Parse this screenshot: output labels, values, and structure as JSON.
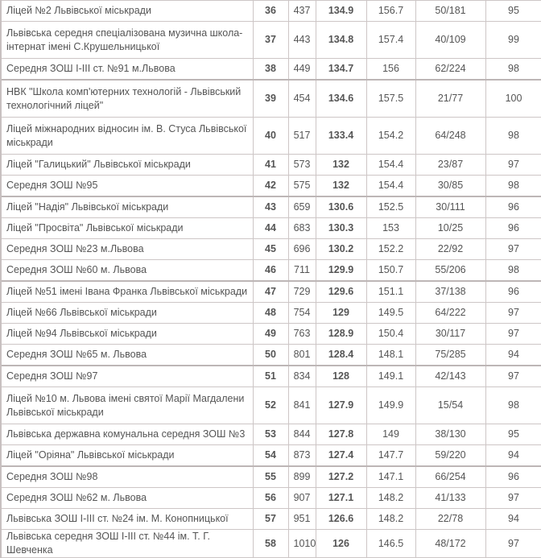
{
  "rows": [
    {
      "name": "Ліцей №2 Львівської міськради",
      "rank": "36",
      "num": "437",
      "score": "134.9",
      "avg": "156.7",
      "ratio": "50/181",
      "pct": "95"
    },
    {
      "name": "Львівська середня спеціалізована музична школа-інтернат імені С.Крушельницької",
      "rank": "37",
      "num": "443",
      "score": "134.8",
      "avg": "157.4",
      "ratio": "40/109",
      "pct": "99"
    },
    {
      "name": "Середня ЗОШ І-ІІІ ст. №91 м.Львова",
      "rank": "38",
      "num": "449",
      "score": "134.7",
      "avg": "156",
      "ratio": "62/224",
      "pct": "98"
    },
    {
      "name": "НВК \"Школа комп'ютерних технологій - Львівський технологічний ліцей\"",
      "rank": "39",
      "num": "454",
      "score": "134.6",
      "avg": "157.5",
      "ratio": "21/77",
      "pct": "100"
    },
    {
      "name": "Ліцей міжнародних відносин ім. В. Стуса Львівської міськради",
      "rank": "40",
      "num": "517",
      "score": "133.4",
      "avg": "154.2",
      "ratio": "64/248",
      "pct": "98"
    },
    {
      "name": "Ліцей \"Галицький\" Львівської міськради",
      "rank": "41",
      "num": "573",
      "score": "132",
      "avg": "154.4",
      "ratio": "23/87",
      "pct": "97"
    },
    {
      "name": "Середня ЗОШ №95",
      "rank": "42",
      "num": "575",
      "score": "132",
      "avg": "154.4",
      "ratio": "30/85",
      "pct": "98"
    },
    {
      "name": "Ліцей \"Надія\" Львівської міськради",
      "rank": "43",
      "num": "659",
      "score": "130.6",
      "avg": "152.5",
      "ratio": "30/111",
      "pct": "96"
    },
    {
      "name": "Ліцей \"Просвіта\" Львівської міськради",
      "rank": "44",
      "num": "683",
      "score": "130.3",
      "avg": "153",
      "ratio": "10/25",
      "pct": "96"
    },
    {
      "name": "Середня ЗОШ №23 м.Львова",
      "rank": "45",
      "num": "696",
      "score": "130.2",
      "avg": "152.2",
      "ratio": "22/92",
      "pct": "97"
    },
    {
      "name": "Середня ЗОШ №60 м. Львова",
      "rank": "46",
      "num": "711",
      "score": "129.9",
      "avg": "150.7",
      "ratio": "55/206",
      "pct": "98"
    },
    {
      "name": "Ліцей №51 імені Івана Франка Львівської міськради",
      "rank": "47",
      "num": "729",
      "score": "129.6",
      "avg": "151.1",
      "ratio": "37/138",
      "pct": "96"
    },
    {
      "name": "Ліцей №66 Львівської міськради",
      "rank": "48",
      "num": "754",
      "score": "129",
      "avg": "149.5",
      "ratio": "64/222",
      "pct": "97"
    },
    {
      "name": "Ліцей №94 Львівської міськради",
      "rank": "49",
      "num": "763",
      "score": "128.9",
      "avg": "150.4",
      "ratio": "30/117",
      "pct": "97"
    },
    {
      "name": "Середня ЗОШ №65 м. Львова",
      "rank": "50",
      "num": "801",
      "score": "128.4",
      "avg": "148.1",
      "ratio": "75/285",
      "pct": "94"
    },
    {
      "name": "Середня ЗОШ №97",
      "rank": "51",
      "num": "834",
      "score": "128",
      "avg": "149.1",
      "ratio": "42/143",
      "pct": "97"
    },
    {
      "name": "Ліцей №10 м. Львова імені святої Марії Магдалени Львівської міськради",
      "rank": "52",
      "num": "841",
      "score": "127.9",
      "avg": "149.9",
      "ratio": "15/54",
      "pct": "98"
    },
    {
      "name": "Львівська державна комунальна середня ЗОШ №3",
      "rank": "53",
      "num": "844",
      "score": "127.8",
      "avg": "149",
      "ratio": "38/130",
      "pct": "95"
    },
    {
      "name": "Ліцей \"Оріяна\" Львівської міськради",
      "rank": "54",
      "num": "873",
      "score": "127.4",
      "avg": "147.7",
      "ratio": "59/220",
      "pct": "94"
    },
    {
      "name": "Середня ЗОШ №98",
      "rank": "55",
      "num": "899",
      "score": "127.2",
      "avg": "147.1",
      "ratio": "66/254",
      "pct": "96"
    },
    {
      "name": "Середня ЗОШ №62 м. Львова",
      "rank": "56",
      "num": "907",
      "score": "127.1",
      "avg": "148.2",
      "ratio": "41/133",
      "pct": "97"
    },
    {
      "name": "Львівська ЗОШ І-ІІІ ст. №24 ім. М. Конопницької",
      "rank": "57",
      "num": "951",
      "score": "126.6",
      "avg": "148.2",
      "ratio": "22/78",
      "pct": "94"
    },
    {
      "name": "Львівська середня ЗОШ І-ІІІ ст. №44 ім. Т. Г. Шевченка",
      "rank": "58",
      "num": "1010",
      "score": "126",
      "avg": "146.5",
      "ratio": "48/172",
      "pct": "97"
    }
  ]
}
